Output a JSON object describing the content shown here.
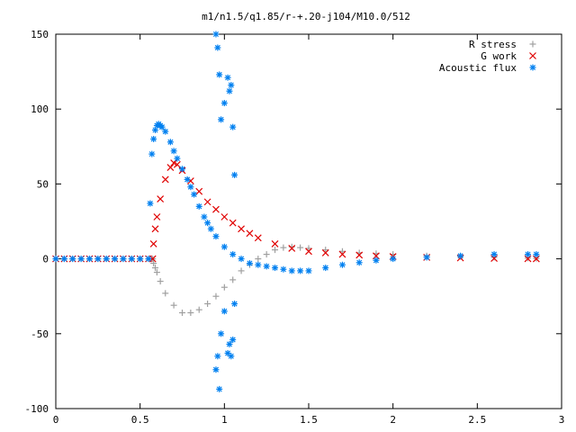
{
  "chart_data": {
    "type": "scatter",
    "title": "m1/n1.5/q1.85/r-+.20-j104/M10.0/512",
    "xlabel": "",
    "ylabel": "",
    "xlim": [
      0,
      3
    ],
    "ylim": [
      -100,
      150
    ],
    "xticks": [
      0,
      0.5,
      1,
      1.5,
      2,
      2.5,
      3
    ],
    "xtick_labels": [
      "0",
      "0.5",
      "1",
      "1.5",
      "2",
      "2.5",
      "3"
    ],
    "yticks": [
      -100,
      -50,
      0,
      50,
      100,
      150
    ],
    "ytick_labels": [
      "-100",
      "-50",
      "0",
      "50",
      "100",
      "150"
    ],
    "grid": false,
    "legend_position": "top-right",
    "series": [
      {
        "name": "R stress",
        "marker": "plus",
        "color": "#a0a0a0",
        "x": [
          0.0,
          0.05,
          0.1,
          0.15,
          0.2,
          0.25,
          0.3,
          0.35,
          0.4,
          0.45,
          0.5,
          0.55,
          0.575,
          0.58,
          0.59,
          0.6,
          0.62,
          0.65,
          0.7,
          0.75,
          0.8,
          0.85,
          0.9,
          0.95,
          1.0,
          1.05,
          1.1,
          1.15,
          1.2,
          1.25,
          1.3,
          1.35,
          1.4,
          1.45,
          1.5,
          1.6,
          1.7,
          1.8,
          1.9,
          2.0,
          2.2,
          2.4,
          2.6,
          2.8,
          2.85
        ],
        "y": [
          0,
          0,
          0,
          0,
          0,
          0,
          0,
          0,
          0,
          0,
          0,
          0,
          0,
          -3,
          -6,
          -9,
          -15,
          -23,
          -31,
          -36,
          -36,
          -34,
          -30,
          -25,
          -19,
          -14,
          -8,
          -4,
          0,
          3,
          6,
          7.5,
          8,
          7.5,
          7,
          6,
          5,
          4,
          3.5,
          3,
          2,
          1.5,
          1,
          0.5,
          0.3
        ]
      },
      {
        "name": "G work",
        "marker": "cross",
        "color": "#e00000",
        "x": [
          0.0,
          0.05,
          0.1,
          0.15,
          0.2,
          0.25,
          0.3,
          0.35,
          0.4,
          0.45,
          0.5,
          0.55,
          0.575,
          0.58,
          0.59,
          0.6,
          0.62,
          0.65,
          0.68,
          0.7,
          0.72,
          0.75,
          0.8,
          0.85,
          0.9,
          0.95,
          1.0,
          1.05,
          1.1,
          1.15,
          1.2,
          1.3,
          1.4,
          1.5,
          1.6,
          1.7,
          1.8,
          1.9,
          2.0,
          2.2,
          2.4,
          2.6,
          2.8,
          2.85
        ],
        "y": [
          0,
          0,
          0,
          0,
          0,
          0,
          0,
          0,
          0,
          0,
          0,
          0,
          0,
          10,
          20,
          28,
          40,
          53,
          61,
          64,
          63,
          59,
          52,
          45,
          38,
          33,
          28,
          24,
          20,
          17,
          14,
          10,
          7,
          5,
          4,
          3,
          2.5,
          2,
          1.5,
          1,
          0.6,
          0.3,
          0.1,
          0
        ]
      },
      {
        "name": "Acoustic flux",
        "marker": "star",
        "color": "#0080f0",
        "x": [
          0.0,
          0.05,
          0.1,
          0.15,
          0.2,
          0.25,
          0.3,
          0.35,
          0.4,
          0.45,
          0.5,
          0.55,
          0.56,
          0.57,
          0.58,
          0.59,
          0.6,
          0.61,
          0.62,
          0.63,
          0.65,
          0.68,
          0.7,
          0.72,
          0.75,
          0.78,
          0.8,
          0.82,
          0.85,
          0.88,
          0.9,
          0.92,
          0.95,
          1.0,
          1.05,
          1.1,
          1.15,
          1.2,
          1.25,
          1.3,
          1.35,
          1.4,
          1.45,
          1.5,
          1.6,
          1.7,
          1.8,
          1.9,
          2.0,
          2.2,
          2.4,
          2.6,
          2.8,
          2.85,
          0.95,
          0.96,
          0.97,
          0.98,
          1.0,
          1.02,
          1.03,
          1.04,
          1.05,
          1.06,
          0.95,
          0.96,
          0.97,
          0.98,
          1.0,
          1.02,
          1.03,
          1.04,
          1.05,
          1.06
        ],
        "y": [
          0,
          0,
          0,
          0,
          0,
          0,
          0,
          0,
          0,
          0,
          0,
          0,
          37,
          70,
          80,
          86,
          89,
          90,
          89,
          88,
          85,
          78,
          72,
          67,
          60,
          53,
          48,
          43,
          35,
          28,
          24,
          20,
          15,
          8,
          3,
          0,
          -3,
          -4,
          -5,
          -6,
          -7,
          -8,
          -8,
          -8,
          -6,
          -4,
          -2.5,
          -1,
          0,
          1,
          2,
          3,
          3,
          3,
          150,
          141,
          123,
          93,
          104,
          121,
          112,
          116,
          88,
          56,
          -74,
          -65,
          -87,
          -50,
          -35,
          -63,
          -57,
          -65,
          -54,
          -30
        ]
      }
    ]
  }
}
